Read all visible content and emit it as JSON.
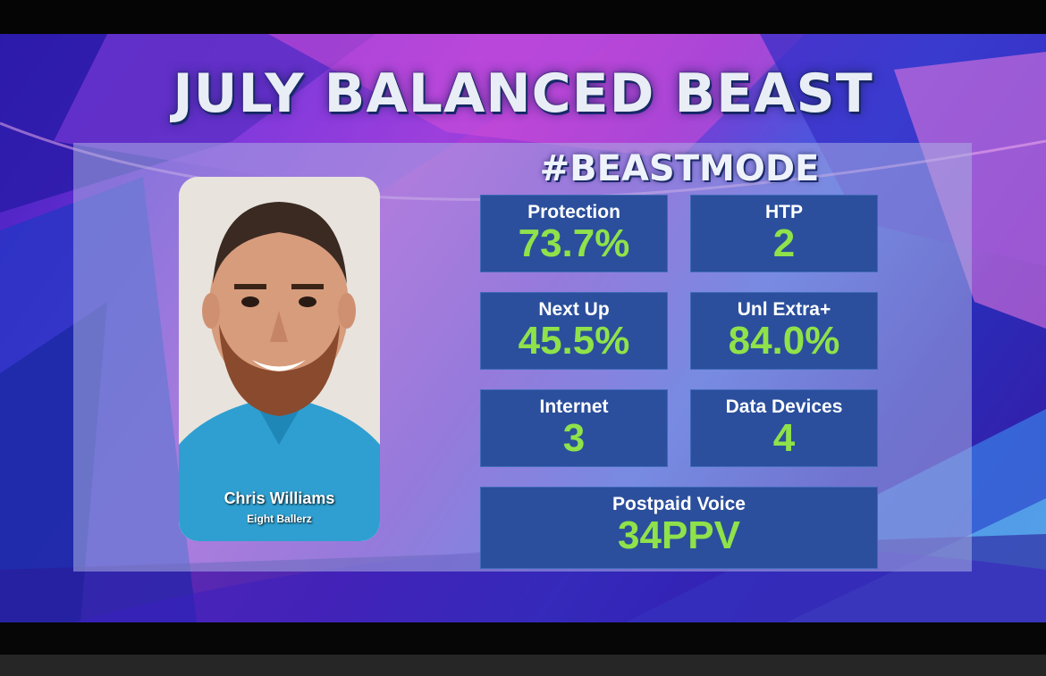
{
  "title": "JULY BALANCED BEAST",
  "subtitle": "#BEASTMODE",
  "person": {
    "name": "Chris Williams",
    "team": "Eight Ballerz"
  },
  "stats": [
    {
      "label": "Protection",
      "value": "73.7%"
    },
    {
      "label": "HTP",
      "value": "2"
    },
    {
      "label": "Next Up",
      "value": "45.5%"
    },
    {
      "label": "Unl Extra+",
      "value": "84.0%"
    },
    {
      "label": "Internet",
      "value": "3"
    },
    {
      "label": "Data Devices",
      "value": "4"
    },
    {
      "label": "Postpaid Voice",
      "value": "34PPV"
    }
  ],
  "colors": {
    "stat_box": "#2b4f9c",
    "stat_value": "#8fe24a",
    "stat_label": "#ffffff",
    "title": "#e9eef6"
  }
}
